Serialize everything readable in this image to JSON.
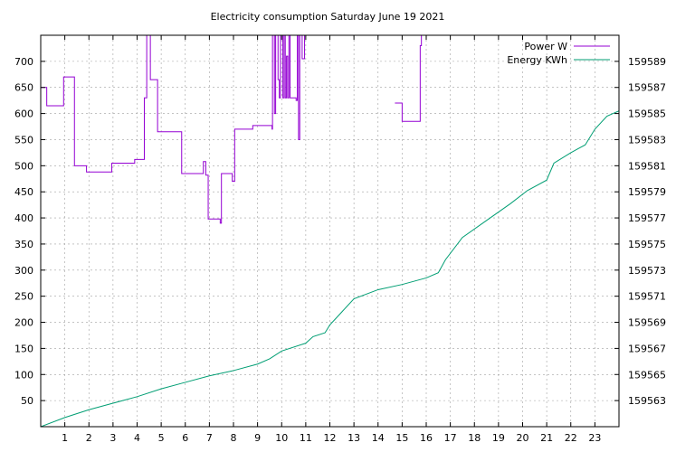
{
  "chart_data": {
    "type": "line",
    "title": "Electricity consumption Saturday June 19 2021",
    "xlabel": "",
    "ylabel": "",
    "y2label": "",
    "xlim": [
      0,
      24
    ],
    "ylim": [
      0,
      750
    ],
    "y2lim": [
      159561,
      159591
    ],
    "x_ticks": [
      1,
      2,
      3,
      4,
      5,
      6,
      7,
      8,
      9,
      10,
      11,
      12,
      13,
      14,
      15,
      16,
      17,
      18,
      19,
      20,
      21,
      22,
      23
    ],
    "y_ticks": [
      50,
      100,
      150,
      200,
      250,
      300,
      350,
      400,
      450,
      500,
      550,
      600,
      650,
      700
    ],
    "y2_ticks": [
      159563,
      159565,
      159567,
      159569,
      159571,
      159573,
      159575,
      159577,
      159579,
      159581,
      159583,
      159585,
      159587,
      159589
    ],
    "grid": true,
    "legend_position": "top-right",
    "series": [
      {
        "name": "Power W",
        "axis": "left",
        "color": "#9400d3",
        "step": true,
        "points": [
          [
            0,
            650
          ],
          [
            0.25,
            615
          ],
          [
            0.95,
            670
          ],
          [
            1.4,
            500
          ],
          [
            1.9,
            488
          ],
          [
            2.95,
            505
          ],
          [
            3.9,
            512
          ],
          [
            4.3,
            630
          ],
          [
            4.4,
            750
          ],
          [
            4.55,
            665
          ],
          [
            4.85,
            565
          ],
          [
            5.85,
            485
          ],
          [
            6.75,
            508
          ],
          [
            6.85,
            482
          ],
          [
            6.95,
            398
          ],
          [
            7.45,
            390
          ],
          [
            7.5,
            485
          ],
          [
            7.95,
            470
          ],
          [
            8.05,
            570
          ],
          [
            8.8,
            577
          ],
          [
            9.6,
            570
          ],
          [
            9.62,
            750
          ],
          [
            9.7,
            600
          ],
          [
            9.75,
            750
          ],
          [
            9.85,
            665
          ],
          [
            9.9,
            630
          ],
          [
            9.95,
            750
          ],
          [
            10.05,
            630
          ],
          [
            10.1,
            750
          ],
          [
            10.15,
            630
          ],
          [
            10.2,
            710
          ],
          [
            10.25,
            630
          ],
          [
            10.3,
            750
          ],
          [
            10.35,
            630
          ],
          [
            10.6,
            625
          ],
          [
            10.65,
            750
          ],
          [
            10.7,
            550
          ],
          [
            10.75,
            750
          ],
          [
            10.85,
            705
          ],
          [
            10.95,
            750
          ],
          [
            11.05,
            750
          ],
          [
            14.7,
            620
          ],
          [
            15.0,
            585
          ],
          [
            15.75,
            730
          ],
          [
            15.8,
            750
          ],
          [
            16.0,
            750
          ]
        ],
        "gaps_after": [
          11.05
        ]
      },
      {
        "name": "Energy KWh",
        "axis": "right",
        "color": "#009e73",
        "step": false,
        "points": [
          [
            0,
            159561.0
          ],
          [
            1,
            159561.7
          ],
          [
            2,
            159562.3
          ],
          [
            3,
            159562.8
          ],
          [
            4,
            159563.3
          ],
          [
            5,
            159563.9
          ],
          [
            6,
            159564.4
          ],
          [
            7,
            159564.9
          ],
          [
            8,
            159565.3
          ],
          [
            9,
            159565.8
          ],
          [
            9.5,
            159566.2
          ],
          [
            10,
            159566.8
          ],
          [
            11,
            159567.4
          ],
          [
            11.3,
            159567.9
          ],
          [
            11.8,
            159568.2
          ],
          [
            12,
            159568.8
          ],
          [
            12.5,
            159569.8
          ],
          [
            13,
            159570.8
          ],
          [
            14,
            159571.5
          ],
          [
            15,
            159571.9
          ],
          [
            16,
            159572.4
          ],
          [
            16.5,
            159572.8
          ],
          [
            16.8,
            159573.8
          ],
          [
            17.5,
            159575.5
          ],
          [
            18.5,
            159576.8
          ],
          [
            19.5,
            159578.1
          ],
          [
            20.2,
            159579.1
          ],
          [
            21,
            159579.9
          ],
          [
            21.3,
            159581.2
          ],
          [
            22,
            159582.0
          ],
          [
            22.6,
            159582.6
          ],
          [
            23.0,
            159583.8
          ],
          [
            23.5,
            159584.8
          ],
          [
            24,
            159585.2
          ]
        ]
      }
    ]
  }
}
